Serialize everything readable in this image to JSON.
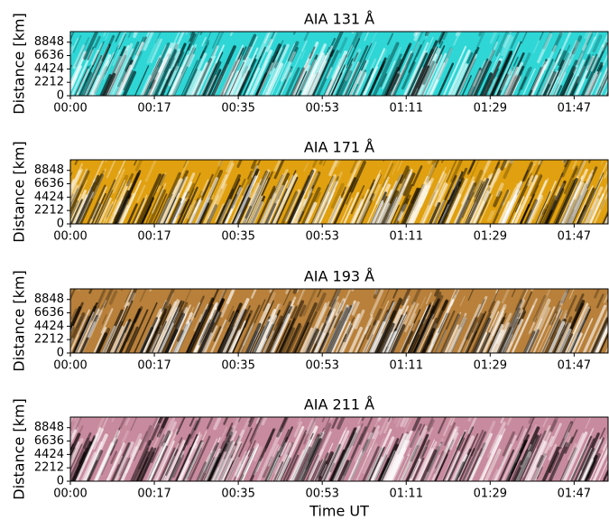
{
  "chart_data": [
    {
      "type": "image",
      "title": "AIA 131 Å",
      "ylabel": "Distance [km]",
      "color": "#2fd6d6",
      "ylim": [
        0,
        10600
      ],
      "yticks": [
        0,
        2212,
        4424,
        6636,
        8848
      ],
      "xlim": [
        0,
        114
      ],
      "xticks": [
        {
          "value": 0,
          "label": "00:00"
        },
        {
          "value": 17.8,
          "label": "00:17"
        },
        {
          "value": 35.6,
          "label": "00:35"
        },
        {
          "value": 53.4,
          "label": "00:53"
        },
        {
          "value": 71.2,
          "label": "01:11"
        },
        {
          "value": 89,
          "label": "01:29"
        },
        {
          "value": 106.8,
          "label": "01:47"
        }
      ]
    },
    {
      "type": "image",
      "title": "AIA 171 Å",
      "ylabel": "Distance [km]",
      "color": "#e0a010",
      "ylim": [
        0,
        10600
      ],
      "yticks": [
        0,
        2212,
        4424,
        6636,
        8848
      ],
      "xlim": [
        0,
        114
      ],
      "xticks": [
        {
          "value": 0,
          "label": "00:00"
        },
        {
          "value": 17.8,
          "label": "00:17"
        },
        {
          "value": 35.6,
          "label": "00:35"
        },
        {
          "value": 53.4,
          "label": "00:53"
        },
        {
          "value": 71.2,
          "label": "01:11"
        },
        {
          "value": 89,
          "label": "01:29"
        },
        {
          "value": 106.8,
          "label": "01:47"
        }
      ]
    },
    {
      "type": "image",
      "title": "AIA 193 Å",
      "ylabel": "Distance [km]",
      "color": "#b8803a",
      "ylim": [
        0,
        10600
      ],
      "yticks": [
        0,
        2212,
        4424,
        6636,
        8848
      ],
      "xlim": [
        0,
        114
      ],
      "xticks": [
        {
          "value": 0,
          "label": "00:00"
        },
        {
          "value": 17.8,
          "label": "00:17"
        },
        {
          "value": 35.6,
          "label": "00:35"
        },
        {
          "value": 53.4,
          "label": "00:53"
        },
        {
          "value": 71.2,
          "label": "01:11"
        },
        {
          "value": 89,
          "label": "01:29"
        },
        {
          "value": 106.8,
          "label": "01:47"
        }
      ]
    },
    {
      "type": "image",
      "title": "AIA 211 Å",
      "ylabel": "Distance [km]",
      "xlabel": "Time UT",
      "color": "#c88a9e",
      "ylim": [
        0,
        10600
      ],
      "yticks": [
        0,
        2212,
        4424,
        6636,
        8848
      ],
      "xlim": [
        0,
        114
      ],
      "xticks": [
        {
          "value": 0,
          "label": "00:00"
        },
        {
          "value": 17.8,
          "label": "00:17"
        },
        {
          "value": 35.6,
          "label": "00:35"
        },
        {
          "value": 53.4,
          "label": "00:53"
        },
        {
          "value": 71.2,
          "label": "01:11"
        },
        {
          "value": 89,
          "label": "01:29"
        },
        {
          "value": 106.8,
          "label": "01:47"
        }
      ]
    }
  ]
}
